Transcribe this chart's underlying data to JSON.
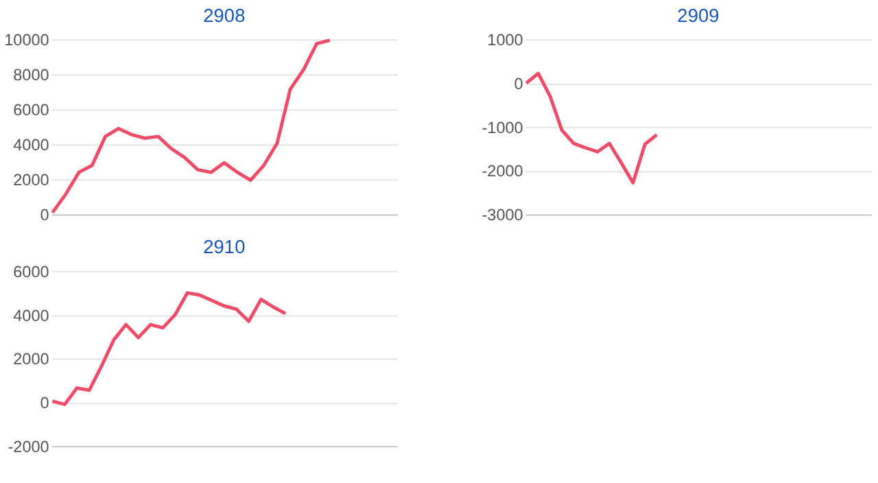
{
  "chart_data": [
    {
      "type": "line",
      "title": "2908",
      "categories": [
        null,
        null,
        null,
        null,
        null,
        null,
        null,
        null,
        null,
        null,
        null,
        null,
        null,
        null,
        null,
        null,
        null,
        null,
        null,
        null,
        null,
        null,
        null,
        null,
        null,
        null,
        null
      ],
      "ylim": [
        0,
        10000
      ],
      "yticks": [
        0,
        2000,
        4000,
        6000,
        8000,
        10000
      ],
      "grid": "y",
      "tick_labels": "y",
      "series": [
        {
          "color": "#ee4d6a",
          "values": [
            100,
            1150,
            2400,
            2800,
            4450,
            4900,
            4550,
            4350,
            4450,
            3750,
            3250,
            2550,
            2400,
            2950,
            2400,
            1950,
            2800,
            4050,
            7150,
            8250,
            9750,
            9950,
            null,
            null,
            null,
            null,
            null
          ]
        }
      ]
    },
    {
      "type": "line",
      "title": "2909",
      "categories": [
        null,
        null,
        null,
        null,
        null,
        null,
        null,
        null,
        null,
        null,
        null,
        null,
        null,
        null,
        null,
        null,
        null,
        null,
        null,
        null,
        null,
        null,
        null,
        null,
        null,
        null,
        null,
        null,
        null,
        null
      ],
      "ylim": [
        -3000,
        1000
      ],
      "yticks": [
        -3000,
        -2000,
        -1000,
        0,
        1000
      ],
      "grid": "y",
      "tick_labels": "y",
      "series": [
        {
          "color": "#ee4d6a",
          "values": [
            0,
            220,
            -300,
            -1080,
            -1380,
            -1480,
            -1570,
            -1380,
            -1820,
            -2280,
            -1400,
            -1180,
            null,
            null,
            null,
            null,
            null,
            null,
            null,
            null,
            null,
            null,
            null,
            null,
            null,
            null,
            null,
            null,
            null,
            null
          ]
        }
      ]
    },
    {
      "type": "line",
      "title": "2910",
      "categories": [
        null,
        null,
        null,
        null,
        null,
        null,
        null,
        null,
        null,
        null,
        null,
        null,
        null,
        null,
        null,
        null,
        null,
        null,
        null,
        null,
        null,
        null,
        null,
        null,
        null,
        null,
        null,
        null,
        null
      ],
      "ylim": [
        -2000,
        6000
      ],
      "yticks": [
        -2000,
        0,
        2000,
        4000,
        6000
      ],
      "grid": "y",
      "tick_labels": "y",
      "series": [
        {
          "color": "#ee4d6a",
          "values": [
            50,
            -100,
            650,
            550,
            1650,
            2850,
            3550,
            2950,
            3550,
            3400,
            4000,
            5000,
            4900,
            4650,
            4400,
            4250,
            3700,
            4700,
            4350,
            4050,
            null,
            null,
            null,
            null,
            null,
            null,
            null,
            null,
            null
          ]
        }
      ]
    }
  ]
}
